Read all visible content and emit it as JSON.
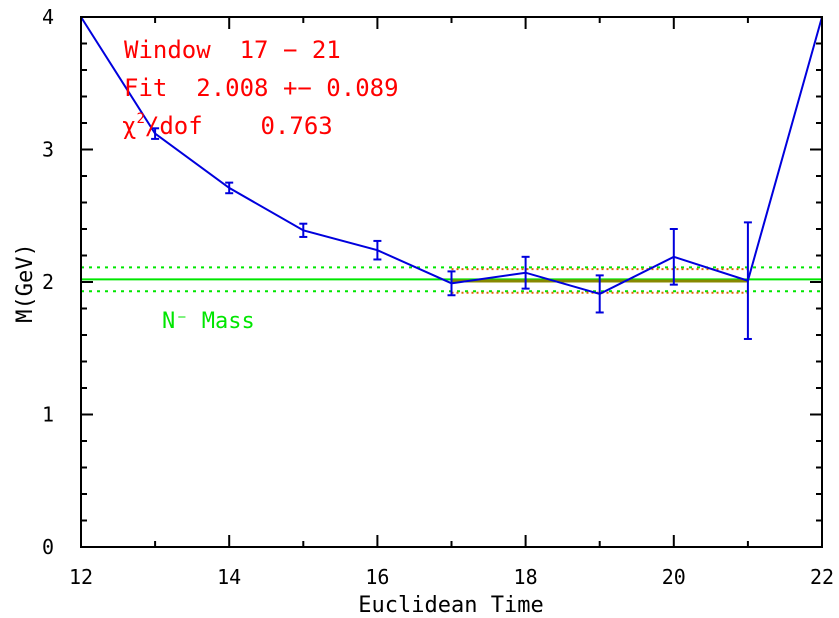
{
  "chart_data": {
    "type": "line",
    "title": "",
    "xlabel": "Euclidean Time",
    "ylabel": "M(GeV)",
    "xlim": [
      12,
      22
    ],
    "ylim": [
      0,
      4
    ],
    "xticks": [
      12,
      14,
      16,
      18,
      20,
      22
    ],
    "yticks": [
      0,
      1,
      2,
      3,
      4
    ],
    "grid": false,
    "series": [
      {
        "color": "#0000dd",
        "x": [
          12,
          13,
          14,
          15,
          16,
          17,
          18,
          19,
          20,
          21,
          22
        ],
        "y": [
          4.0,
          3.12,
          2.71,
          2.39,
          2.24,
          1.99,
          2.07,
          1.91,
          2.19,
          2.01,
          4.0
        ],
        "err": [
          null,
          0.04,
          0.04,
          0.05,
          0.07,
          0.09,
          0.12,
          0.14,
          0.21,
          0.44,
          null
        ]
      }
    ],
    "nucleon_band": {
      "label": "N⁻ Mass",
      "center": 2.02,
      "low": 1.93,
      "high": 2.11,
      "color": "#00e600"
    },
    "fit": {
      "window_start": 17,
      "window_end": 21,
      "value": 2.008,
      "error": 0.089,
      "line_color": "#888800",
      "band_color": "#dd6600"
    },
    "annotations": {
      "window_text": "Window  17 − 21",
      "fit_text": "Fit  2.008 +− 0.089",
      "chi_symbol": "χ",
      "chi_exponent": "2",
      "chi_rest": "/dof    0.763",
      "color": "#ff0000"
    }
  }
}
